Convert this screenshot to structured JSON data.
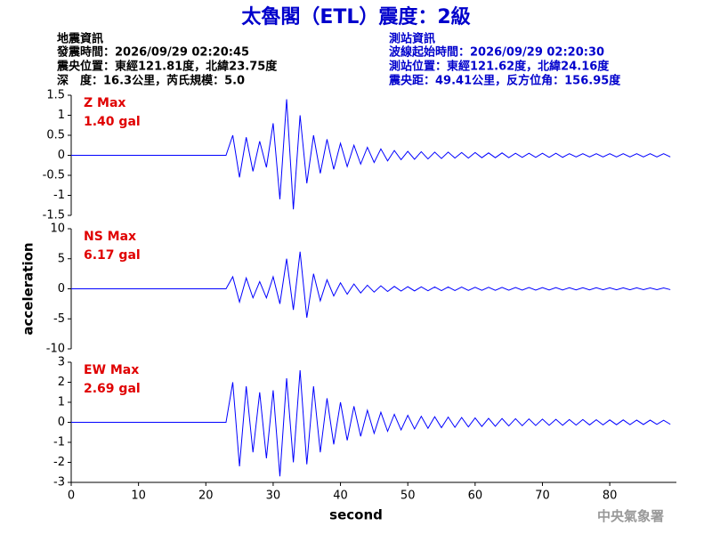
{
  "title": "太魯閣（ETL）震度：2級",
  "event_info": [
    "地震資訊",
    "發震時間：2026/09/29 02:20:45",
    "震央位置：東經121.81度，北緯23.75度",
    "深　度：16.3公里，芮氏規模：5.0"
  ],
  "station_info": [
    "測站資訊",
    "波線起始時間：2026/09/29 02:20:30",
    "測站位置：東經121.62度，北緯24.16度",
    "震央距：49.41公里，反方位角：156.95度"
  ],
  "footer": "中央氣象署",
  "chart_data": [
    {
      "type": "line",
      "label": "Z Max",
      "max_label": "1.40 gal",
      "xlim": [
        0,
        89.9
      ],
      "ylim": [
        -1.5,
        1.5
      ],
      "yticks": [
        -1.5,
        -1,
        -0.5,
        0,
        0.5,
        1,
        1.5
      ],
      "x": [
        0,
        1,
        2,
        3,
        4,
        5,
        6,
        7,
        8,
        9,
        10,
        11,
        12,
        13,
        14,
        15,
        16,
        17,
        18,
        19,
        20,
        21,
        22,
        23,
        24,
        25,
        26,
        27,
        28,
        29,
        30,
        31,
        32,
        33,
        34,
        35,
        36,
        37,
        38,
        39,
        40,
        41,
        42,
        43,
        44,
        45,
        46,
        47,
        48,
        49,
        50,
        51,
        52,
        53,
        54,
        55,
        56,
        57,
        58,
        59,
        60,
        61,
        62,
        63,
        64,
        65,
        66,
        67,
        68,
        69,
        70,
        71,
        72,
        73,
        74,
        75,
        76,
        77,
        78,
        79,
        80,
        81,
        82,
        83,
        84,
        85,
        86,
        87,
        88,
        89
      ],
      "series": [
        {
          "name": "Z",
          "color": "#0000ff",
          "values": [
            0,
            0,
            0,
            0,
            0,
            0,
            0,
            0,
            0,
            0,
            0,
            0,
            0,
            0,
            0,
            0,
            0,
            0,
            0,
            0,
            0,
            0,
            0,
            0,
            0.5,
            -0.55,
            0.45,
            -0.4,
            0.35,
            -0.3,
            0.8,
            -1.1,
            1.4,
            -1.35,
            1.0,
            -0.7,
            0.5,
            -0.45,
            0.4,
            -0.35,
            0.3,
            -0.28,
            0.25,
            -0.22,
            0.2,
            -0.18,
            0.16,
            -0.14,
            0.12,
            -0.11,
            0.1,
            -0.1,
            0.09,
            -0.09,
            0.08,
            -0.08,
            0.08,
            -0.07,
            0.07,
            -0.07,
            0.07,
            -0.06,
            0.06,
            -0.06,
            0.06,
            -0.06,
            0.05,
            -0.05,
            0.05,
            -0.05,
            0.05,
            -0.05,
            0.05,
            -0.05,
            0.04,
            -0.04,
            0.04,
            -0.04,
            0.04,
            -0.04,
            0.04,
            -0.04,
            0.04,
            -0.04,
            0.04,
            -0.04,
            0.04,
            -0.04,
            0.04,
            -0.04
          ]
        }
      ]
    },
    {
      "type": "line",
      "label": "NS Max",
      "max_label": "6.17 gal",
      "ylabel": "acceleration",
      "xlim": [
        0,
        89.9
      ],
      "ylim": [
        -10,
        10
      ],
      "yticks": [
        -10,
        -5,
        0,
        5,
        10
      ],
      "x": [
        0,
        1,
        2,
        3,
        4,
        5,
        6,
        7,
        8,
        9,
        10,
        11,
        12,
        13,
        14,
        15,
        16,
        17,
        18,
        19,
        20,
        21,
        22,
        23,
        24,
        25,
        26,
        27,
        28,
        29,
        30,
        31,
        32,
        33,
        34,
        35,
        36,
        37,
        38,
        39,
        40,
        41,
        42,
        43,
        44,
        45,
        46,
        47,
        48,
        49,
        50,
        51,
        52,
        53,
        54,
        55,
        56,
        57,
        58,
        59,
        60,
        61,
        62,
        63,
        64,
        65,
        66,
        67,
        68,
        69,
        70,
        71,
        72,
        73,
        74,
        75,
        76,
        77,
        78,
        79,
        80,
        81,
        82,
        83,
        84,
        85,
        86,
        87,
        88,
        89
      ],
      "series": [
        {
          "name": "NS",
          "color": "#0000ff",
          "values": [
            0,
            0,
            0,
            0,
            0,
            0,
            0,
            0,
            0,
            0,
            0,
            0,
            0,
            0,
            0,
            0,
            0,
            0,
            0,
            0,
            0,
            0,
            0,
            0,
            2,
            -2.2,
            1.8,
            -1.5,
            1.2,
            -1.5,
            2,
            -2.5,
            5,
            -3.5,
            6.17,
            -4.8,
            2.5,
            -2,
            1.5,
            -1.2,
            1,
            -0.9,
            0.8,
            -0.7,
            0.6,
            -0.55,
            0.5,
            -0.45,
            0.4,
            -0.38,
            0.35,
            -0.35,
            0.33,
            -0.32,
            0.3,
            -0.3,
            0.3,
            -0.28,
            0.28,
            -0.27,
            0.26,
            -0.25,
            0.25,
            -0.25,
            0.24,
            -0.23,
            0.22,
            -0.22,
            0.22,
            -0.21,
            0.2,
            -0.2,
            0.2,
            -0.2,
            0.19,
            -0.19,
            0.18,
            -0.18,
            0.18,
            -0.17,
            0.17,
            -0.17,
            0.16,
            -0.16,
            0.16,
            -0.15,
            0.15,
            -0.15,
            0.15,
            -0.14
          ]
        }
      ]
    },
    {
      "type": "line",
      "label": "EW Max",
      "max_label": "2.69 gal",
      "xlabel": "second",
      "xlim": [
        0,
        89.9
      ],
      "ylim": [
        -3,
        3
      ],
      "yticks": [
        -3,
        -2,
        -1,
        0,
        1,
        2,
        3
      ],
      "xticks": [
        0,
        10,
        20,
        30,
        40,
        50,
        60,
        70,
        80
      ],
      "x": [
        0,
        1,
        2,
        3,
        4,
        5,
        6,
        7,
        8,
        9,
        10,
        11,
        12,
        13,
        14,
        15,
        16,
        17,
        18,
        19,
        20,
        21,
        22,
        23,
        24,
        25,
        26,
        27,
        28,
        29,
        30,
        31,
        32,
        33,
        34,
        35,
        36,
        37,
        38,
        39,
        40,
        41,
        42,
        43,
        44,
        45,
        46,
        47,
        48,
        49,
        50,
        51,
        52,
        53,
        54,
        55,
        56,
        57,
        58,
        59,
        60,
        61,
        62,
        63,
        64,
        65,
        66,
        67,
        68,
        69,
        70,
        71,
        72,
        73,
        74,
        75,
        76,
        77,
        78,
        79,
        80,
        81,
        82,
        83,
        84,
        85,
        86,
        87,
        88,
        89
      ],
      "series": [
        {
          "name": "EW",
          "color": "#0000ff",
          "values": [
            0,
            0,
            0,
            0,
            0,
            0,
            0,
            0,
            0,
            0,
            0,
            0,
            0,
            0,
            0,
            0,
            0,
            0,
            0,
            0,
            0,
            0,
            0,
            0,
            2,
            -2.2,
            1.8,
            -1.5,
            1.5,
            -1.8,
            1.6,
            -2.7,
            2.2,
            -2,
            2.6,
            -2.1,
            1.8,
            -1.5,
            1.2,
            -1.1,
            1,
            -0.9,
            0.8,
            -0.7,
            0.6,
            -0.55,
            0.5,
            -0.45,
            0.4,
            -0.38,
            0.35,
            -0.33,
            0.3,
            -0.3,
            0.28,
            -0.27,
            0.26,
            -0.25,
            0.24,
            -0.23,
            0.22,
            -0.21,
            0.2,
            -0.2,
            0.19,
            -0.18,
            0.18,
            -0.17,
            0.17,
            -0.16,
            0.16,
            -0.15,
            0.15,
            -0.15,
            0.14,
            -0.14,
            0.14,
            -0.13,
            0.13,
            -0.13,
            0.12,
            -0.12,
            0.12,
            -0.12,
            0.11,
            -0.11,
            0.11,
            -0.1,
            0.1,
            -0.1
          ]
        }
      ]
    }
  ]
}
